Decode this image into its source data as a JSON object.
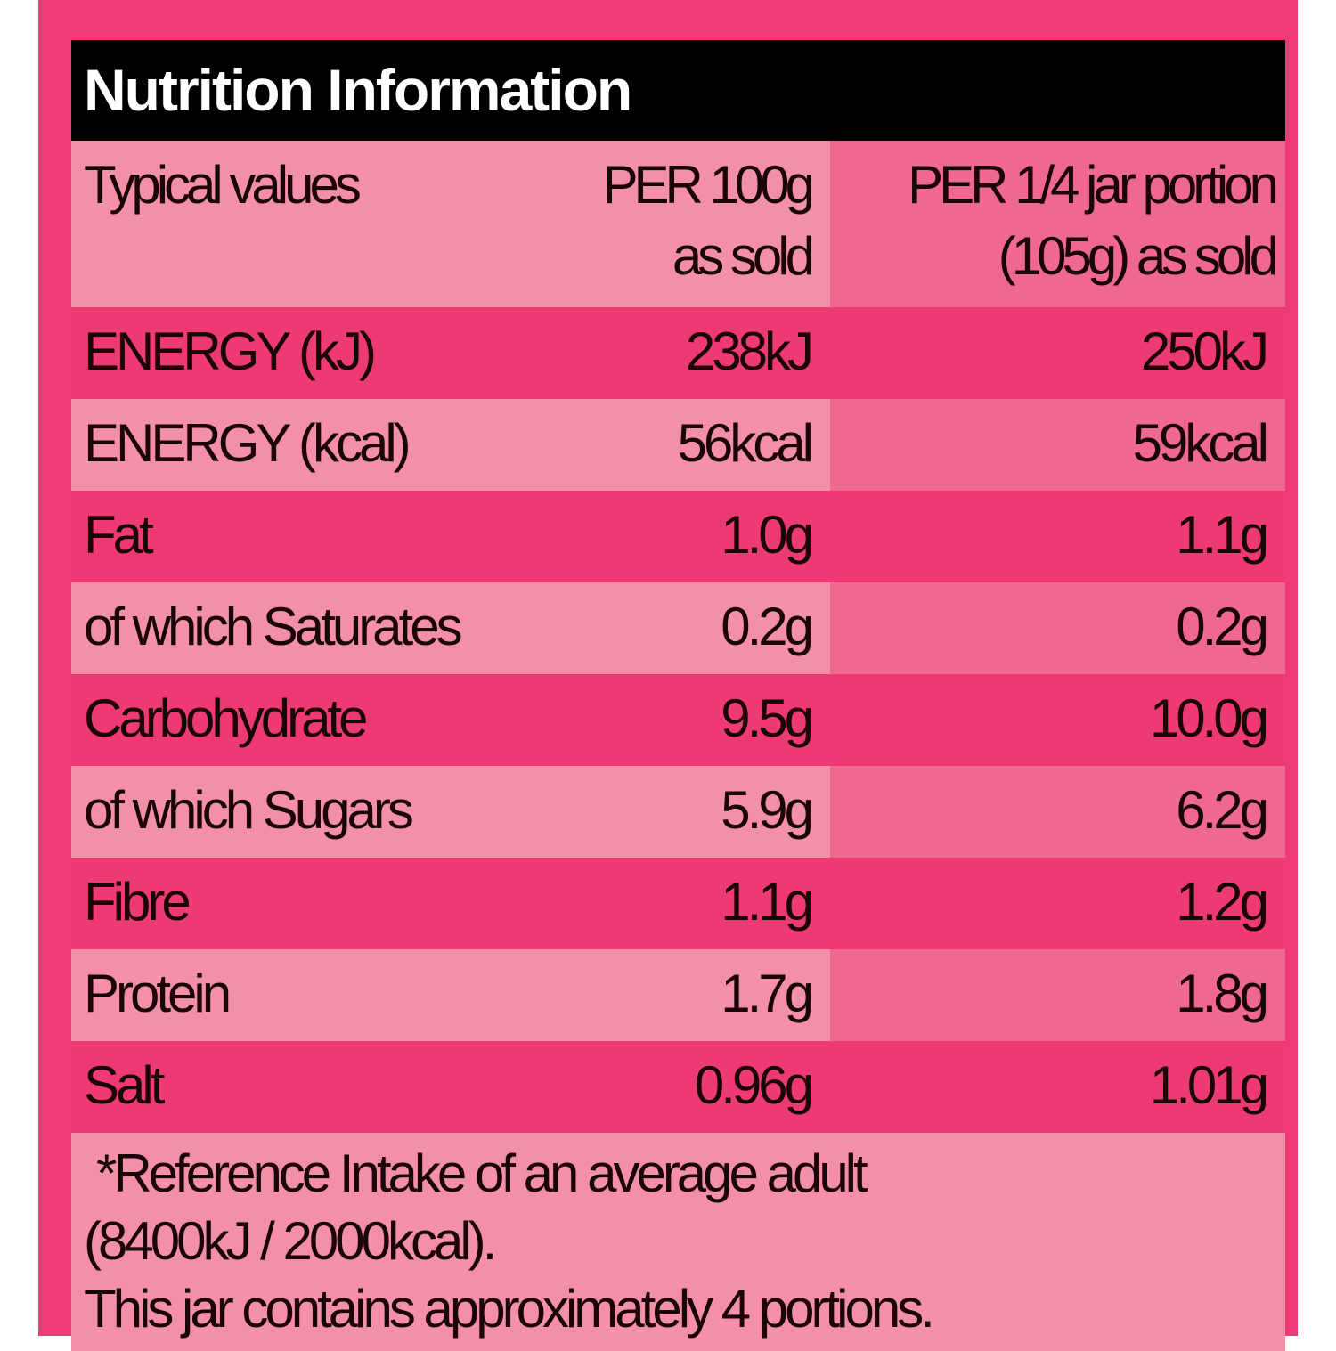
{
  "title": "Nutrition Information",
  "header": {
    "col0": "Typical values",
    "col1": [
      "PER 100g",
      "as sold"
    ],
    "col2": [
      "PER 1/4 jar portion",
      "(105g) as sold"
    ]
  },
  "rows": [
    {
      "label": "ENERGY (kJ)",
      "per100": "238kJ",
      "portion": "250kJ"
    },
    {
      "label": "ENERGY (kcal)",
      "per100": "56kcal",
      "portion": "59kcal"
    },
    {
      "label": "Fat",
      "per100": "1.0g",
      "portion": "1.1g"
    },
    {
      "label": "of which Saturates",
      "per100": "0.2g",
      "portion": "0.2g"
    },
    {
      "label": "Carbohydrate",
      "per100": "9.5g",
      "portion": "10.0g"
    },
    {
      "label": "of which Sugars",
      "per100": "5.9g",
      "portion": "6.2g"
    },
    {
      "label": "Fibre",
      "per100": "1.1g",
      "portion": "1.2g"
    },
    {
      "label": "Protein",
      "per100": "1.7g",
      "portion": "1.8g"
    },
    {
      "label": "Salt",
      "per100": "0.96g",
      "portion": "1.01g"
    }
  ],
  "footer": [
    "*Reference Intake of an average adult",
    "(8400kJ / 2000kcal).",
    "This jar contains approximately 4 portions."
  ],
  "colors": {
    "frame": "#ee3a78",
    "dark_row": "#ee3a74",
    "light_row": "#f48fa8",
    "light_row_portion": "#ef6890",
    "title_bg": "#000000"
  }
}
